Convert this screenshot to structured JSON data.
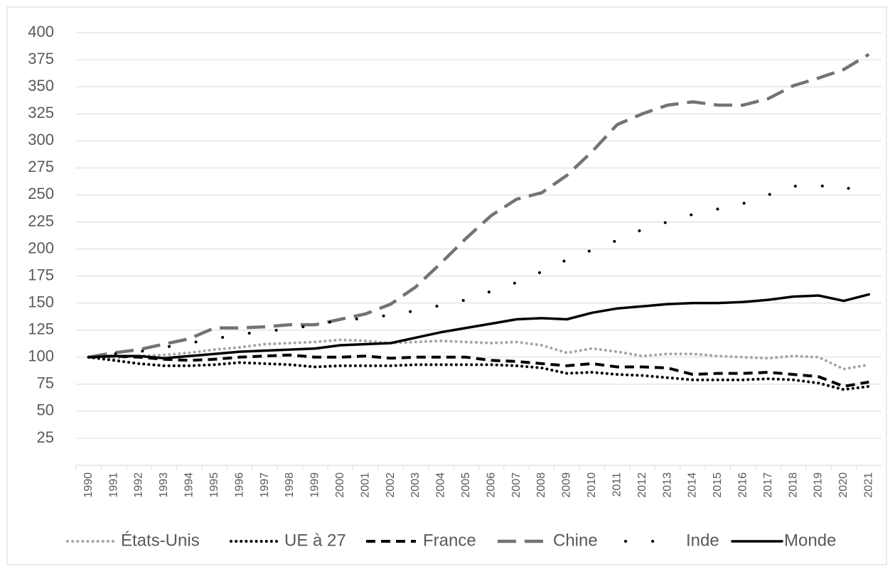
{
  "chart_data": {
    "type": "line",
    "categories": [
      "1990",
      "1991",
      "1992",
      "1993",
      "1994",
      "1995",
      "1996",
      "1997",
      "1998",
      "1999",
      "2000",
      "2001",
      "2002",
      "2003",
      "2004",
      "2005",
      "2006",
      "2007",
      "2008",
      "2009",
      "2010",
      "2011",
      "2012",
      "2013",
      "2014",
      "2015",
      "2016",
      "2017",
      "2018",
      "2019",
      "2020",
      "2021"
    ],
    "series": [
      {
        "name": "États-Unis",
        "color": "#a6a6a6",
        "style": "dotted",
        "values": [
          100,
          99,
          101,
          102,
          104,
          107,
          109,
          112,
          113,
          114,
          116,
          115,
          113,
          114,
          115,
          114,
          113,
          114,
          111,
          104,
          108,
          105,
          101,
          103,
          103,
          101,
          100,
          99,
          101,
          100,
          89,
          93
        ]
      },
      {
        "name": "UE à 27",
        "color": "#000000",
        "style": "dotted",
        "values": [
          100,
          97,
          94,
          92,
          92,
          93,
          95,
          94,
          93,
          91,
          92,
          92,
          92,
          93,
          93,
          93,
          93,
          92,
          90,
          85,
          86,
          84,
          83,
          81,
          79,
          79,
          79,
          80,
          79,
          76,
          70,
          73
        ]
      },
      {
        "name": "France",
        "color": "#000000",
        "style": "dashed",
        "values": [
          100,
          101,
          100,
          98,
          97,
          98,
          100,
          101,
          102,
          100,
          100,
          101,
          99,
          100,
          100,
          100,
          97,
          96,
          94,
          92,
          94,
          91,
          91,
          90,
          84,
          85,
          85,
          86,
          84,
          82,
          73,
          77
        ]
      },
      {
        "name": "Chine",
        "color": "#737373",
        "style": "long-dashed",
        "values": [
          100,
          104,
          107,
          112,
          117,
          127,
          127,
          128,
          130,
          130,
          135,
          140,
          149,
          165,
          187,
          210,
          231,
          246,
          252,
          268,
          290,
          315,
          325,
          333,
          336,
          333,
          333,
          339,
          351,
          358,
          366,
          380
        ]
      },
      {
        "name": "Inde",
        "color": "#000000",
        "style": "sparse-dotted",
        "values": [
          100,
          103,
          105,
          109,
          113,
          117,
          121,
          124,
          126,
          130,
          134,
          136,
          139,
          143,
          148,
          153,
          161,
          169,
          179,
          190,
          199,
          208,
          218,
          225,
          232,
          237,
          242,
          250,
          258,
          259,
          254,
          265
        ]
      },
      {
        "name": "Monde",
        "color": "#000000",
        "style": "solid",
        "values": [
          100,
          101,
          101,
          99,
          101,
          103,
          105,
          106,
          107,
          108,
          111,
          112,
          113,
          118,
          123,
          127,
          131,
          135,
          136,
          135,
          141,
          145,
          147,
          149,
          150,
          150,
          151,
          153,
          156,
          157,
          152,
          158
        ]
      }
    ],
    "ylim": [
      0,
      400
    ],
    "yticks": [
      25,
      50,
      75,
      100,
      125,
      150,
      175,
      200,
      225,
      250,
      275,
      300,
      325,
      350,
      375,
      400
    ],
    "grid": true,
    "legend": "bottom"
  }
}
